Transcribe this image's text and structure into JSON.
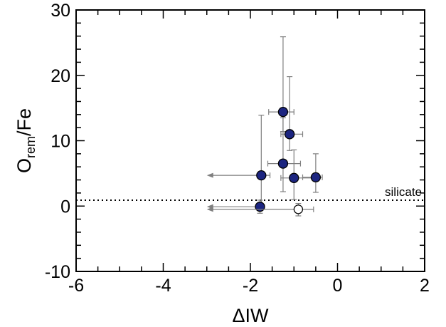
{
  "chart_data": {
    "type": "scatter",
    "xlabel": "ΔIW",
    "ylabel_main": "O",
    "ylabel_sub": "rem",
    "ylabel_tail": "/Fe",
    "xlim": [
      -6,
      2
    ],
    "ylim": [
      -10,
      30
    ],
    "xticks": [
      -6,
      -4,
      -2,
      0,
      2
    ],
    "yticks": [
      -10,
      0,
      10,
      20,
      30
    ],
    "grid": false,
    "colors": {
      "filled_marker": "#1c2580",
      "error_bar": "#7f7f7f",
      "reference_line": "#000000"
    },
    "reference_line": {
      "y": 0.9,
      "style": "dotted",
      "label": "silicate"
    },
    "points": [
      {
        "x": -1.25,
        "y": 14.4,
        "xerr": [
          0.33,
          0.25
        ],
        "yerr": [
          3.0,
          11.5
        ],
        "marker": "filled"
      },
      {
        "x": -1.1,
        "y": 11.0,
        "xerr": [
          0.2,
          0.3
        ],
        "yerr": [
          2.5,
          8.8
        ],
        "marker": "filled"
      },
      {
        "x": -1.25,
        "y": 6.5,
        "xerr": [
          0.35,
          0.4
        ],
        "yerr": [
          4.3,
          7.0
        ],
        "marker": "filled"
      },
      {
        "x": -1.75,
        "y": 4.7,
        "xerr_lower_limit": -3.0,
        "xerr": [
          0,
          0.2
        ],
        "yerr": [
          4.6,
          9.2
        ],
        "marker": "filled"
      },
      {
        "x": -1.0,
        "y": 4.3,
        "xerr": [
          0.3,
          0.45
        ],
        "yerr": [
          3.3,
          4.3
        ],
        "marker": "filled"
      },
      {
        "x": -0.5,
        "y": 4.4,
        "xerr": [
          0.3,
          0.15
        ],
        "yerr": [
          2.3,
          3.6
        ],
        "marker": "filled"
      },
      {
        "x": -1.78,
        "y": -0.1,
        "xerr_lower_limit": -3.0,
        "xerr": [
          0,
          0.1
        ],
        "yerr": [
          1.0,
          1.0
        ],
        "marker": "filled"
      },
      {
        "x": -0.9,
        "y": -0.5,
        "xerr_lower_limit": -3.0,
        "xerr": [
          0,
          0.35
        ],
        "yerr": [
          1.0,
          0.9
        ],
        "marker": "open"
      }
    ]
  }
}
